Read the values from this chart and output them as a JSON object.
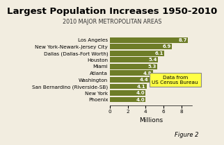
{
  "title": "Largest Population Increases 1950-2010",
  "subtitle": "2010 MAJOR METROPOLITAN AREAS",
  "categories": [
    "Phoenix",
    "New York",
    "San Bernardino (Riverside-SB)",
    "Washington",
    "Atlanta",
    "Miami",
    "Houston",
    "Dallas (Dallas-Fort Worth)",
    "New York-Newark-Jersey City",
    "Los Angeles"
  ],
  "values": [
    4.0,
    4.0,
    4.1,
    4.4,
    4.8,
    5.3,
    5.4,
    6.1,
    6.9,
    8.7
  ],
  "bar_color": "#6e7d28",
  "background_color": "#f2ede0",
  "xlabel": "Millions",
  "xlim": [
    0,
    9.2
  ],
  "xticks": [
    0,
    2,
    4,
    6,
    8
  ],
  "annotation_box_color": "#ffff44",
  "annotation_text": "Data from\nUS Census Bureau",
  "figure_label": "Figure 2",
  "title_fontsize": 9.5,
  "subtitle_fontsize": 5.8,
  "xlabel_fontsize": 6.5,
  "label_fontsize": 5.0,
  "tick_fontsize": 5.2,
  "value_fontsize": 5.0
}
